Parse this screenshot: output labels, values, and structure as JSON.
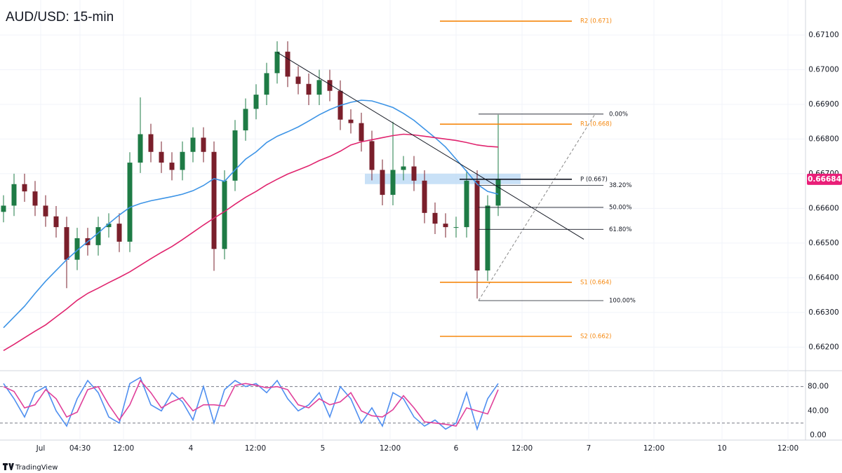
{
  "chart_data": [
    {
      "type": "candlestick",
      "title": "AUD/USD: 15-min",
      "ylim": [
        0.66134,
        0.67201
      ],
      "yticks": [
        {
          "value": 0.662,
          "label": "0.66200"
        },
        {
          "value": 0.663,
          "label": "0.66300"
        },
        {
          "value": 0.664,
          "label": "0.66400"
        },
        {
          "value": 0.665,
          "label": "0.66500"
        },
        {
          "value": 0.666,
          "label": "0.66600"
        },
        {
          "value": 0.667,
          "label": "0.66700"
        },
        {
          "value": 0.668,
          "label": "0.66800"
        },
        {
          "value": 0.669,
          "label": "0.66900"
        },
        {
          "value": 0.67,
          "label": "0.67000"
        },
        {
          "value": 0.671,
          "label": "0.67100"
        }
      ],
      "grid": true,
      "xlabels": [
        "Jul",
        "04:30",
        "12:00",
        "4",
        "12:00",
        "5",
        "12:00",
        "6",
        "12:00",
        "7",
        "12:00",
        "10",
        "12:00"
      ],
      "candles": {
        "up_color": "#1e7b45",
        "down_color": "#7a1f2b",
        "open": [
          0.6659,
          0.66608,
          0.6667,
          0.66649,
          0.66608,
          0.66577,
          0.66546,
          0.66452,
          0.66514,
          0.66494,
          0.66546,
          0.66556,
          0.66504,
          0.66732,
          0.66814,
          0.66763,
          0.66732,
          0.66711,
          0.66763,
          0.66804,
          0.66763,
          0.66483,
          0.6668,
          0.66825,
          0.66887,
          0.66928,
          0.6699,
          0.67052,
          0.6698,
          0.66959,
          0.66928,
          0.6697,
          0.66939,
          0.66856,
          0.66846,
          0.66794,
          0.66711,
          0.66639,
          0.66711,
          0.66721,
          0.6668,
          0.66587,
          0.66556,
          0.66546,
          0.66546,
          0.6668,
          0.66421,
          0.66608
        ],
        "high": [
          0.66638,
          0.667,
          0.667,
          0.66679,
          0.66638,
          0.66607,
          0.66576,
          0.66544,
          0.66544,
          0.66576,
          0.66586,
          0.66586,
          0.66762,
          0.6692,
          0.66844,
          0.66793,
          0.66762,
          0.66793,
          0.66834,
          0.66834,
          0.66793,
          0.6671,
          0.66855,
          0.66917,
          0.66958,
          0.6702,
          0.67082,
          0.67082,
          0.6701,
          0.66989,
          0.67,
          0.67,
          0.66969,
          0.66886,
          0.66876,
          0.66824,
          0.66741,
          0.6685,
          0.66751,
          0.66751,
          0.6671,
          0.66617,
          0.66586,
          0.66576,
          0.6671,
          0.6671,
          0.66638,
          0.6687
        ],
        "low": [
          0.6656,
          0.66578,
          0.66619,
          0.66578,
          0.66547,
          0.66516,
          0.6637,
          0.66422,
          0.66464,
          0.66464,
          0.66516,
          0.66474,
          0.66474,
          0.66702,
          0.66733,
          0.66702,
          0.66681,
          0.66681,
          0.66733,
          0.66733,
          0.6642,
          0.66453,
          0.6665,
          0.66795,
          0.66857,
          0.66898,
          0.6696,
          0.6695,
          0.66929,
          0.66898,
          0.66898,
          0.66909,
          0.66826,
          0.66816,
          0.66764,
          0.66681,
          0.66609,
          0.66609,
          0.66681,
          0.6665,
          0.66557,
          0.66526,
          0.66516,
          0.66516,
          0.66516,
          0.6634,
          0.66391,
          0.66578
        ],
        "close": [
          0.66608,
          0.6667,
          0.66649,
          0.66608,
          0.66577,
          0.66546,
          0.66452,
          0.66514,
          0.66494,
          0.66546,
          0.66556,
          0.66504,
          0.66732,
          0.66814,
          0.66763,
          0.66732,
          0.66711,
          0.66763,
          0.66804,
          0.66763,
          0.66483,
          0.6668,
          0.66825,
          0.66887,
          0.66928,
          0.6699,
          0.67052,
          0.6698,
          0.66959,
          0.66928,
          0.6697,
          0.66939,
          0.66856,
          0.66846,
          0.66794,
          0.66711,
          0.66639,
          0.66711,
          0.66721,
          0.6668,
          0.66587,
          0.66556,
          0.66546,
          0.66546,
          0.6668,
          0.66421,
          0.66608,
          0.66684
        ]
      },
      "series": [
        {
          "color": "#3d94e6",
          "values": [
            0.66256,
            0.66287,
            0.66318,
            0.66355,
            0.6639,
            0.66421,
            0.66452,
            0.66479,
            0.66504,
            0.66529,
            0.66556,
            0.66581,
            0.66603,
            0.66614,
            0.66622,
            0.66628,
            0.66634,
            0.66641,
            0.66651,
            0.66666,
            0.66686,
            0.66678,
            0.66711,
            0.66742,
            0.66763,
            0.6679,
            0.66808,
            0.66821,
            0.66835,
            0.66852,
            0.6687,
            0.66885,
            0.66897,
            0.66906,
            0.66912,
            0.6691,
            0.66901,
            0.66891,
            0.66874,
            0.66854,
            0.66829,
            0.66804,
            0.66777,
            0.66742,
            0.66707,
            0.6667,
            0.66649,
            0.66641
          ]
        },
        {
          "color": "#e0246e",
          "values": [
            0.6619,
            0.66208,
            0.66227,
            0.66246,
            0.66264,
            0.66287,
            0.6631,
            0.66335,
            0.66355,
            0.6637,
            0.66386,
            0.66401,
            0.66417,
            0.66436,
            0.66455,
            0.66473,
            0.6649,
            0.6651,
            0.66531,
            0.66552,
            0.66572,
            0.66591,
            0.66612,
            0.66632,
            0.66649,
            0.66668,
            0.66684,
            0.66699,
            0.66711,
            0.66723,
            0.66738,
            0.6675,
            0.66765,
            0.66783,
            0.66792,
            0.66798,
            0.66804,
            0.6681,
            0.66814,
            0.66812,
            0.66808,
            0.66804,
            0.668,
            0.66796,
            0.6679,
            0.66783,
            0.66779,
            0.66777
          ]
        }
      ],
      "pivots": [
        {
          "label": "R2 (0.671)",
          "value": 0.6714,
          "color": "#f5880f"
        },
        {
          "label": "R1 (0.668)",
          "value": 0.66843,
          "color": "#f5880f"
        },
        {
          "label": "P (0.667)",
          "value": 0.66684,
          "color": "#131722"
        },
        {
          "label": "S1 (0.664)",
          "value": 0.66387,
          "color": "#f5880f"
        },
        {
          "label": "S2 (0.662)",
          "value": 0.66231,
          "color": "#f5880f"
        }
      ],
      "fib": {
        "high": 0.66872,
        "low": 0.66334,
        "color": "#131722",
        "levels": [
          {
            "value": 0,
            "label": "0.00%"
          },
          {
            "value": 38.2,
            "label": "38.20%"
          },
          {
            "value": 50,
            "label": "50.00%"
          },
          {
            "value": 61.8,
            "label": "61.80%"
          },
          {
            "value": 100,
            "label": "100.00%"
          }
        ]
      },
      "trendline": {
        "start": 0.6705,
        "end": 0.66511
      },
      "zone": [
        0.6667,
        0.667
      ],
      "last_price": 0.66684,
      "last_price_color": "#e91e78"
    },
    {
      "type": "line",
      "ylim": [
        -8,
        105
      ],
      "yticks": [
        {
          "value": 0,
          "label": "0.00"
        },
        {
          "value": 40,
          "label": "40.00"
        },
        {
          "value": 80,
          "label": "80.00"
        }
      ],
      "bands": [
        80,
        20
      ],
      "series": [
        {
          "color": "#4f8ff0",
          "values": [
            85,
            60,
            30,
            70,
            80,
            40,
            15,
            60,
            90,
            70,
            30,
            20,
            85,
            95,
            50,
            40,
            70,
            55,
            25,
            80,
            20,
            75,
            90,
            80,
            85,
            70,
            90,
            60,
            40,
            50,
            70,
            30,
            80,
            60,
            20,
            45,
            15,
            70,
            60,
            30,
            15,
            25,
            10,
            20,
            70,
            10,
            60,
            85
          ]
        },
        {
          "color": "#e0409a",
          "values": [
            80,
            72,
            45,
            50,
            75,
            60,
            30,
            38,
            75,
            80,
            50,
            25,
            50,
            90,
            70,
            45,
            55,
            62,
            40,
            50,
            50,
            48,
            82,
            85,
            82,
            78,
            80,
            75,
            50,
            45,
            60,
            50,
            55,
            70,
            40,
            32,
            30,
            42,
            65,
            45,
            22,
            20,
            18,
            15,
            45,
            40,
            35,
            75
          ]
        }
      ]
    }
  ],
  "footer": {
    "brand": "TradingView"
  }
}
